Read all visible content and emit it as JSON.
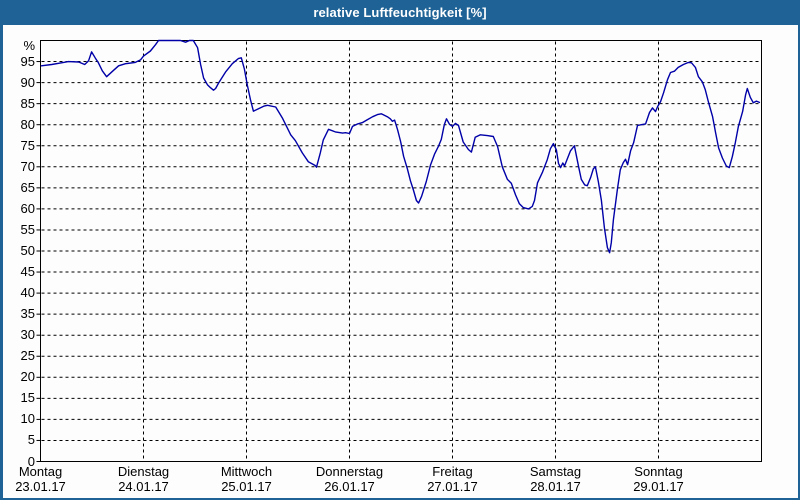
{
  "window": {
    "title": "relative Luftfeuchtigkeit [%]"
  },
  "colors": {
    "chrome_blue": "#1f6396",
    "line_blue": "#0000a8",
    "grid_black": "#000000",
    "plot_background": "#fdfdfd",
    "text_black": "#000000"
  },
  "chart_data": {
    "type": "line",
    "title": "relative Luftfeuchtigkeit [%]",
    "xlabel": "",
    "ylabel": "%",
    "ylim": [
      0,
      100
    ],
    "y_ticks": [
      0,
      5,
      10,
      15,
      20,
      25,
      30,
      35,
      40,
      45,
      50,
      55,
      60,
      65,
      70,
      75,
      80,
      85,
      90,
      95
    ],
    "grid": "dashed, horizontal at every 5% and vertical at every day boundary",
    "legend_position": "none",
    "x_axis": {
      "hours_total": 168,
      "days": [
        {
          "name": "Montag",
          "date": "23.01.17"
        },
        {
          "name": "Dienstag",
          "date": "24.01.17"
        },
        {
          "name": "Mittwoch",
          "date": "25.01.17"
        },
        {
          "name": "Donnerstag",
          "date": "26.01.17"
        },
        {
          "name": "Freitag",
          "date": "27.01.17"
        },
        {
          "name": "Samstag",
          "date": "28.01.17"
        },
        {
          "name": "Sonntag",
          "date": "29.01.17"
        }
      ]
    },
    "series": [
      {
        "name": "relative Luftfeuchtigkeit [%]",
        "color": "#0000a8",
        "unit": "%",
        "points_hours_vs_percent": [
          [
            0.2,
            94
          ],
          [
            2.6,
            94.3
          ],
          [
            4.9,
            94.7
          ],
          [
            6.5,
            95
          ],
          [
            8.9,
            94.9
          ],
          [
            10.3,
            94.3
          ],
          [
            11.2,
            95.2
          ],
          [
            11.9,
            97.3
          ],
          [
            12.8,
            95.8
          ],
          [
            13.5,
            94.7
          ],
          [
            14.4,
            92.8
          ],
          [
            15.4,
            91.4
          ],
          [
            16.8,
            92.7
          ],
          [
            18.2,
            94
          ],
          [
            19.8,
            94.5
          ],
          [
            22.1,
            94.8
          ],
          [
            23.3,
            95.4
          ],
          [
            24,
            96.3
          ],
          [
            25.6,
            97.5
          ],
          [
            26.8,
            99
          ],
          [
            27.5,
            100
          ],
          [
            29.1,
            100
          ],
          [
            30.8,
            100
          ],
          [
            32.6,
            100
          ],
          [
            33.8,
            99.6
          ],
          [
            34.7,
            100
          ],
          [
            35.6,
            100
          ],
          [
            36.6,
            98.3
          ],
          [
            37.3,
            94.3
          ],
          [
            38,
            91.1
          ],
          [
            38.9,
            89.5
          ],
          [
            39.6,
            88.8
          ],
          [
            40.3,
            88.2
          ],
          [
            40.8,
            88.6
          ],
          [
            41.5,
            89.9
          ],
          [
            43.1,
            92.5
          ],
          [
            44.7,
            94.5
          ],
          [
            46.1,
            95.7
          ],
          [
            46.8,
            95.9
          ],
          [
            47.5,
            93.2
          ],
          [
            48.2,
            89.3
          ],
          [
            48.9,
            86
          ],
          [
            49.6,
            83.2
          ],
          [
            50.6,
            83.7
          ],
          [
            52,
            84.4
          ],
          [
            52.9,
            84.6
          ],
          [
            54.8,
            84.2
          ],
          [
            56.4,
            81.5
          ],
          [
            58.3,
            77.6
          ],
          [
            59.4,
            76.2
          ],
          [
            61,
            73.3
          ],
          [
            62.4,
            71.2
          ],
          [
            64,
            70.3
          ],
          [
            64.3,
            69.9
          ],
          [
            65.2,
            73.3
          ],
          [
            65.9,
            76.4
          ],
          [
            67.1,
            78.9
          ],
          [
            68.7,
            78.3
          ],
          [
            70.4,
            78
          ],
          [
            71.1,
            78.1
          ],
          [
            72,
            77.9
          ],
          [
            72.7,
            79.6
          ],
          [
            73.9,
            80.2
          ],
          [
            75,
            80.5
          ],
          [
            76.2,
            81.2
          ],
          [
            77.4,
            81.9
          ],
          [
            78.5,
            82.4
          ],
          [
            79.4,
            82.6
          ],
          [
            80.8,
            81.9
          ],
          [
            81.5,
            81.4
          ],
          [
            82,
            80.8
          ],
          [
            82.5,
            81.1
          ],
          [
            83.2,
            78.8
          ],
          [
            83.9,
            76
          ],
          [
            84.6,
            72.5
          ],
          [
            85.5,
            69.5
          ],
          [
            86.2,
            66.7
          ],
          [
            86.9,
            64.5
          ],
          [
            87.6,
            62
          ],
          [
            88.1,
            61.4
          ],
          [
            88.8,
            63
          ],
          [
            89.9,
            66.5
          ],
          [
            90.9,
            70.5
          ],
          [
            91.8,
            73
          ],
          [
            92.7,
            74.8
          ],
          [
            93.4,
            76.5
          ],
          [
            94.1,
            80
          ],
          [
            94.6,
            81.4
          ],
          [
            95.3,
            80.1
          ],
          [
            96,
            79.6
          ],
          [
            96.7,
            80.3
          ],
          [
            97.4,
            79.8
          ],
          [
            98.5,
            75.9
          ],
          [
            99.7,
            74.1
          ],
          [
            100.4,
            73.5
          ],
          [
            101.3,
            77
          ],
          [
            102.5,
            77.6
          ],
          [
            104.1,
            77.4
          ],
          [
            105.5,
            77.2
          ],
          [
            106.5,
            74.8
          ],
          [
            107.6,
            70
          ],
          [
            108.8,
            67
          ],
          [
            109.7,
            66.1
          ],
          [
            110.7,
            63.3
          ],
          [
            111.6,
            61.2
          ],
          [
            112.5,
            60.3
          ],
          [
            113.7,
            60
          ],
          [
            114.6,
            60.6
          ],
          [
            115.1,
            62
          ],
          [
            115.8,
            66.2
          ],
          [
            117,
            68.8
          ],
          [
            118.1,
            71.7
          ],
          [
            118.8,
            74.3
          ],
          [
            119.5,
            75.5
          ],
          [
            120.2,
            74
          ],
          [
            120.7,
            70.8
          ],
          [
            121.2,
            69.8
          ],
          [
            121.7,
            70.9
          ],
          [
            122.1,
            70.2
          ],
          [
            122.8,
            72
          ],
          [
            123.5,
            73.8
          ],
          [
            124.4,
            75
          ],
          [
            125.4,
            69.9
          ],
          [
            126,
            67
          ],
          [
            126.8,
            65.7
          ],
          [
            127.4,
            65.5
          ],
          [
            128.2,
            67.5
          ],
          [
            128.8,
            69.5
          ],
          [
            129.3,
            70
          ],
          [
            130,
            66.4
          ],
          [
            130.7,
            62
          ],
          [
            131.4,
            55.5
          ],
          [
            132.1,
            50.8
          ],
          [
            132.6,
            49.6
          ],
          [
            133,
            52
          ],
          [
            133.5,
            57.4
          ],
          [
            134.4,
            64.5
          ],
          [
            135.1,
            69.3
          ],
          [
            135.8,
            71
          ],
          [
            136.3,
            71.8
          ],
          [
            136.8,
            70.5
          ],
          [
            137.5,
            73.8
          ],
          [
            138.2,
            75.7
          ],
          [
            139.1,
            79.8
          ],
          [
            140,
            80
          ],
          [
            141,
            80.2
          ],
          [
            141.9,
            82.9
          ],
          [
            142.6,
            84
          ],
          [
            143.3,
            83.1
          ],
          [
            143.8,
            84.3
          ],
          [
            144.5,
            85.5
          ],
          [
            145.2,
            87.6
          ],
          [
            146.1,
            90.7
          ],
          [
            146.8,
            92.4
          ],
          [
            147.7,
            92.7
          ],
          [
            148.6,
            93.6
          ],
          [
            149.8,
            94.3
          ],
          [
            151,
            94.8
          ],
          [
            151.7,
            94.7
          ],
          [
            152.6,
            93.6
          ],
          [
            153.3,
            91.4
          ],
          [
            154.2,
            90.2
          ],
          [
            154.9,
            88.3
          ],
          [
            155.6,
            85.5
          ],
          [
            156.6,
            81.9
          ],
          [
            157.3,
            78.1
          ],
          [
            158,
            74.5
          ],
          [
            158.9,
            72.1
          ],
          [
            159.8,
            70.2
          ],
          [
            160.5,
            69.8
          ],
          [
            161.2,
            72.4
          ],
          [
            161.9,
            75.7
          ],
          [
            162.6,
            79.5
          ],
          [
            163.6,
            83.1
          ],
          [
            164.3,
            87.1
          ],
          [
            164.7,
            88.6
          ],
          [
            165.4,
            86.5
          ],
          [
            166.1,
            85.2
          ],
          [
            166.8,
            85.6
          ],
          [
            167.5,
            85.3
          ]
        ]
      }
    ]
  }
}
